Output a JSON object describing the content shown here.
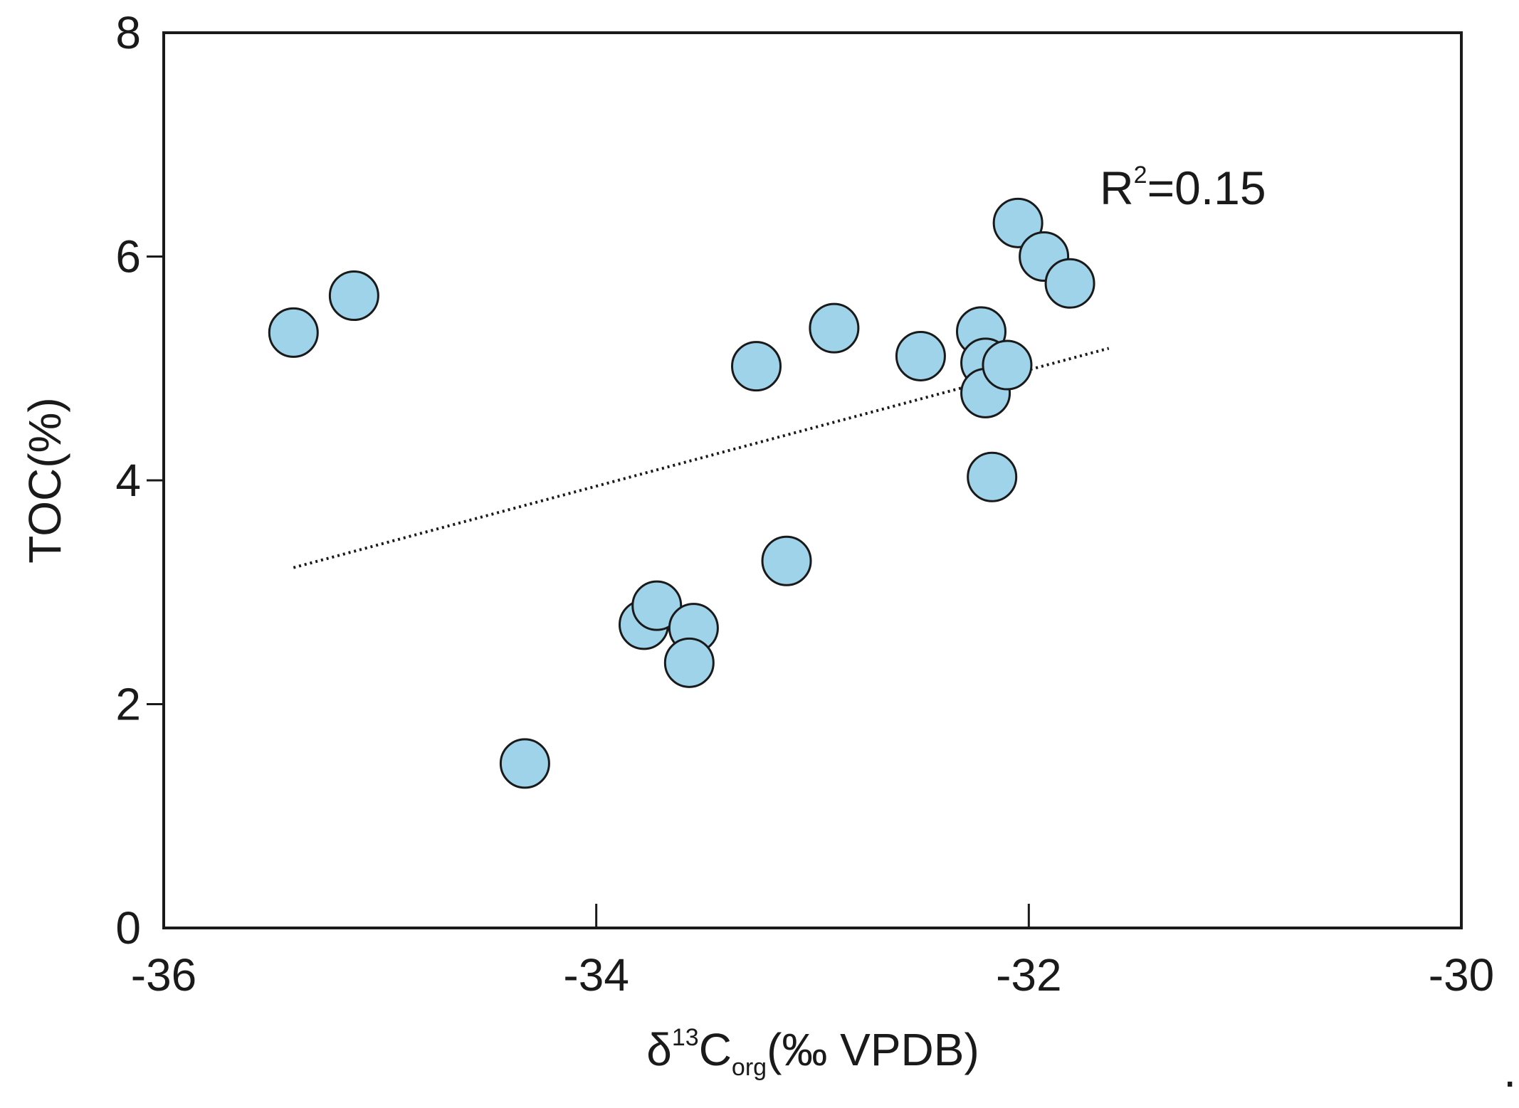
{
  "chart_data": {
    "type": "scatter",
    "title": "",
    "xlabel": {
      "main": "δ",
      "sup": "13",
      "base": "C",
      "sub": "org",
      "unit": "(‰ VPDB)"
    },
    "ylabel": "TOC(%)",
    "xlim": [
      -36,
      -30
    ],
    "ylim": [
      0,
      8
    ],
    "xticks": [
      -36,
      -34,
      -32,
      -30
    ],
    "yticks": [
      0,
      2,
      4,
      6,
      8
    ],
    "grid": false,
    "series": [
      {
        "name": "samples",
        "marker_color": "#9fd3ea",
        "edge_color": "#1a1a1a",
        "points": [
          {
            "x": -35.4,
            "y": 5.32
          },
          {
            "x": -35.12,
            "y": 5.65
          },
          {
            "x": -34.33,
            "y": 1.47
          },
          {
            "x": -33.78,
            "y": 2.71
          },
          {
            "x": -33.72,
            "y": 2.88
          },
          {
            "x": -33.55,
            "y": 2.68
          },
          {
            "x": -33.57,
            "y": 2.37
          },
          {
            "x": -33.26,
            "y": 5.02
          },
          {
            "x": -33.12,
            "y": 3.28
          },
          {
            "x": -32.9,
            "y": 5.36
          },
          {
            "x": -32.5,
            "y": 5.11
          },
          {
            "x": -32.22,
            "y": 5.33
          },
          {
            "x": -32.2,
            "y": 5.05
          },
          {
            "x": -32.17,
            "y": 4.03
          },
          {
            "x": -32.2,
            "y": 4.78
          },
          {
            "x": -32.1,
            "y": 5.03
          },
          {
            "x": -32.05,
            "y": 6.3
          },
          {
            "x": -31.93,
            "y": 6.0
          },
          {
            "x": -31.81,
            "y": 5.76
          }
        ]
      }
    ],
    "trendline": {
      "style": "dotted",
      "x": [
        -35.4,
        -31.63
      ],
      "y": [
        3.22,
        5.18
      ]
    },
    "annotation": {
      "r_label": "R",
      "r_sup": "2",
      "r_value": "=0.15"
    },
    "stray_mark": "."
  }
}
